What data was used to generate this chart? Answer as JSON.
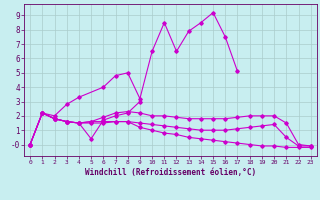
{
  "xlabel": "Windchill (Refroidissement éolien,°C)",
  "x": [
    0,
    1,
    2,
    3,
    4,
    5,
    6,
    7,
    8,
    9,
    10,
    11,
    12,
    13,
    14,
    15,
    16,
    17,
    18,
    19,
    20,
    21,
    22,
    23
  ],
  "lines": [
    [
      0.0,
      2.2,
      1.8,
      1.6,
      1.5,
      0.4,
      1.7,
      2.0,
      2.2,
      3.0,
      null,
      null,
      null,
      null,
      null,
      null,
      null,
      null,
      null,
      null,
      null,
      null,
      null,
      null
    ],
    [
      0.0,
      2.2,
      1.8,
      1.6,
      1.5,
      1.6,
      1.9,
      2.2,
      2.3,
      2.2,
      2.0,
      2.0,
      1.9,
      1.8,
      1.8,
      1.8,
      1.8,
      1.9,
      2.0,
      2.0,
      2.0,
      1.5,
      0.0,
      -0.1
    ],
    [
      0.0,
      2.2,
      1.8,
      1.6,
      1.5,
      1.6,
      1.6,
      1.6,
      1.6,
      1.2,
      1.0,
      0.8,
      0.7,
      0.5,
      0.4,
      0.3,
      0.2,
      0.1,
      0.0,
      -0.1,
      -0.1,
      -0.2,
      -0.2,
      -0.2
    ],
    [
      0.0,
      2.2,
      1.8,
      1.6,
      1.5,
      1.5,
      1.5,
      1.6,
      1.6,
      1.5,
      1.4,
      1.3,
      1.2,
      1.1,
      1.0,
      1.0,
      1.0,
      1.1,
      1.2,
      1.3,
      1.4,
      0.5,
      -0.1,
      -0.1
    ],
    [
      0.0,
      2.2,
      2.0,
      2.8,
      3.3,
      null,
      4.0,
      4.8,
      5.0,
      3.2,
      6.5,
      8.5,
      6.5,
      7.9,
      8.5,
      9.2,
      7.5,
      5.1,
      null,
      null,
      null,
      null,
      null,
      null
    ]
  ],
  "line_color": "#cc00cc",
  "bg_color": "#c8eef0",
  "grid_color": "#aacccc",
  "text_color": "#660066",
  "ylim": [
    -0.8,
    9.8
  ],
  "xlim": [
    -0.5,
    23.5
  ],
  "yticks": [
    0,
    1,
    2,
    3,
    4,
    5,
    6,
    7,
    8,
    9
  ],
  "ytick_labels": [
    "-0",
    "1",
    "2",
    "3",
    "4",
    "5",
    "6",
    "7",
    "8",
    "9"
  ],
  "xticks": [
    0,
    1,
    2,
    3,
    4,
    5,
    6,
    7,
    8,
    9,
    10,
    11,
    12,
    13,
    14,
    15,
    16,
    17,
    18,
    19,
    20,
    21,
    22,
    23
  ]
}
